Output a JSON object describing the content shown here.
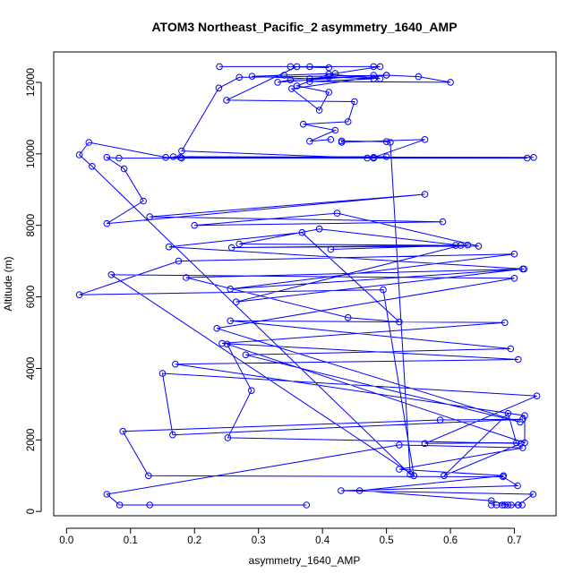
{
  "chart_data": {
    "type": "line",
    "title": "ATOM3 Northeast_Pacific_2 asymmetry_1640_AMP",
    "xlabel": "asymmetry_1640_AMP",
    "ylabel": "Altitude (m)",
    "xlim": [
      -0.02,
      0.765
    ],
    "ylim": [
      -120,
      12850
    ],
    "xticks": [
      "0.0",
      "0.1",
      "0.2",
      "0.3",
      "0.4",
      "0.5",
      "0.6",
      "0.7"
    ],
    "yticks": [
      "0",
      "2000",
      "4000",
      "6000",
      "8000",
      "10000",
      "12000"
    ],
    "markers": "open-circle",
    "grid": false,
    "legend": "none",
    "series_color": "#0000ff",
    "series": [
      {
        "values": [
          [
            0.375,
            180
          ],
          [
            0.13,
            180
          ],
          [
            0.083,
            180
          ],
          [
            0.063,
            480
          ],
          [
            0.52,
            1860
          ],
          [
            0.713,
            1780
          ],
          [
            0.52,
            1180
          ],
          [
            0.683,
            1000
          ],
          [
            0.458,
            580
          ],
          [
            0.664,
            300
          ],
          [
            0.69,
            180
          ],
          [
            0.672,
            180
          ],
          [
            0.681,
            180
          ],
          [
            0.706,
            180
          ],
          [
            0.712,
            180
          ],
          [
            0.695,
            180
          ],
          [
            0.685,
            180
          ],
          [
            0.664,
            180
          ],
          [
            0.706,
            180
          ],
          [
            0.729,
            480
          ],
          [
            0.429,
            580
          ],
          [
            0.705,
            720
          ],
          [
            0.682,
            970
          ],
          [
            0.128,
            1000
          ],
          [
            0.088,
            2240
          ],
          [
            0.584,
            2560
          ],
          [
            0.713,
            2580
          ],
          [
            0.166,
            2140
          ],
          [
            0.15,
            3860
          ],
          [
            0.735,
            3230
          ],
          [
            0.56,
            1900
          ],
          [
            0.703,
            1920
          ],
          [
            0.69,
            2740
          ],
          [
            0.59,
            1000
          ],
          [
            0.71,
            1900
          ],
          [
            0.252,
            2060
          ],
          [
            0.289,
            3380
          ],
          [
            0.251,
            4680
          ],
          [
            0.716,
            1920
          ],
          [
            0.716,
            2680
          ],
          [
            0.17,
            4120
          ],
          [
            0.706,
            4250
          ],
          [
            0.243,
            4700
          ],
          [
            0.685,
            5280
          ],
          [
            0.256,
            5330
          ],
          [
            0.694,
            4550
          ],
          [
            0.28,
            4380
          ],
          [
            0.709,
            2500
          ],
          [
            0.235,
            5120
          ],
          [
            0.7,
            6520
          ],
          [
            0.07,
            6620
          ],
          [
            0.543,
            1000
          ],
          [
            0.495,
            6200
          ],
          [
            0.02,
            6060
          ],
          [
            0.175,
            7000
          ],
          [
            0.7,
            7200
          ],
          [
            0.256,
            6220
          ],
          [
            0.715,
            6780
          ],
          [
            0.187,
            6540
          ],
          [
            0.44,
            5420
          ],
          [
            0.52,
            5300
          ],
          [
            0.368,
            7800
          ],
          [
            0.16,
            7400
          ],
          [
            0.713,
            6780
          ],
          [
            0.265,
            5860
          ],
          [
            0.616,
            7440
          ],
          [
            0.395,
            7900
          ],
          [
            0.27,
            7480
          ],
          [
            0.608,
            7440
          ],
          [
            0.413,
            7330
          ],
          [
            0.627,
            7450
          ],
          [
            0.258,
            7380
          ],
          [
            0.644,
            7420
          ],
          [
            0.423,
            8340
          ],
          [
            0.2,
            8000
          ],
          [
            0.588,
            8100
          ],
          [
            0.13,
            8240
          ],
          [
            0.56,
            8870
          ],
          [
            0.063,
            8050
          ],
          [
            0.12,
            8680
          ],
          [
            0.09,
            9580
          ],
          [
            0.063,
            9900
          ],
          [
            0.082,
            9880
          ],
          [
            0.72,
            9880
          ],
          [
            0.167,
            9920
          ],
          [
            0.73,
            9900
          ],
          [
            0.178,
            9900
          ],
          [
            0.48,
            9880
          ],
          [
            0.18,
            9880
          ],
          [
            0.5,
            9920
          ],
          [
            0.155,
            9900
          ],
          [
            0.035,
            10320
          ],
          [
            0.02,
            9970
          ],
          [
            0.04,
            9650
          ],
          [
            0.537,
            1040
          ],
          [
            0.506,
            10320
          ],
          [
            0.5,
            10340
          ],
          [
            0.43,
            10360
          ],
          [
            0.43,
            10320
          ],
          [
            0.56,
            10400
          ],
          [
            0.48,
            9900
          ],
          [
            0.47,
            9880
          ],
          [
            0.18,
            10080
          ],
          [
            0.238,
            11840
          ],
          [
            0.27,
            12140
          ],
          [
            0.5,
            12200
          ],
          [
            0.55,
            12160
          ],
          [
            0.6,
            12000
          ],
          [
            0.38,
            12020
          ],
          [
            0.48,
            12100
          ],
          [
            0.41,
            12150
          ],
          [
            0.35,
            12070
          ],
          [
            0.33,
            12000
          ],
          [
            0.48,
            12200
          ],
          [
            0.49,
            12100
          ],
          [
            0.41,
            12230
          ],
          [
            0.36,
            11900
          ],
          [
            0.41,
            11720
          ],
          [
            0.395,
            11220
          ],
          [
            0.352,
            11820
          ],
          [
            0.5,
            12200
          ],
          [
            0.38,
            12100
          ],
          [
            0.29,
            12170
          ],
          [
            0.34,
            12200
          ],
          [
            0.42,
            12250
          ],
          [
            0.49,
            12440
          ],
          [
            0.239,
            12440
          ],
          [
            0.35,
            12440
          ],
          [
            0.41,
            12410
          ],
          [
            0.38,
            12440
          ],
          [
            0.48,
            12440
          ],
          [
            0.36,
            12440
          ],
          [
            0.25,
            11500
          ],
          [
            0.45,
            11460
          ],
          [
            0.44,
            10900
          ],
          [
            0.37,
            10830
          ],
          [
            0.42,
            10660
          ],
          [
            0.38,
            10350
          ],
          [
            0.413,
            10400
          ]
        ]
      }
    ]
  }
}
